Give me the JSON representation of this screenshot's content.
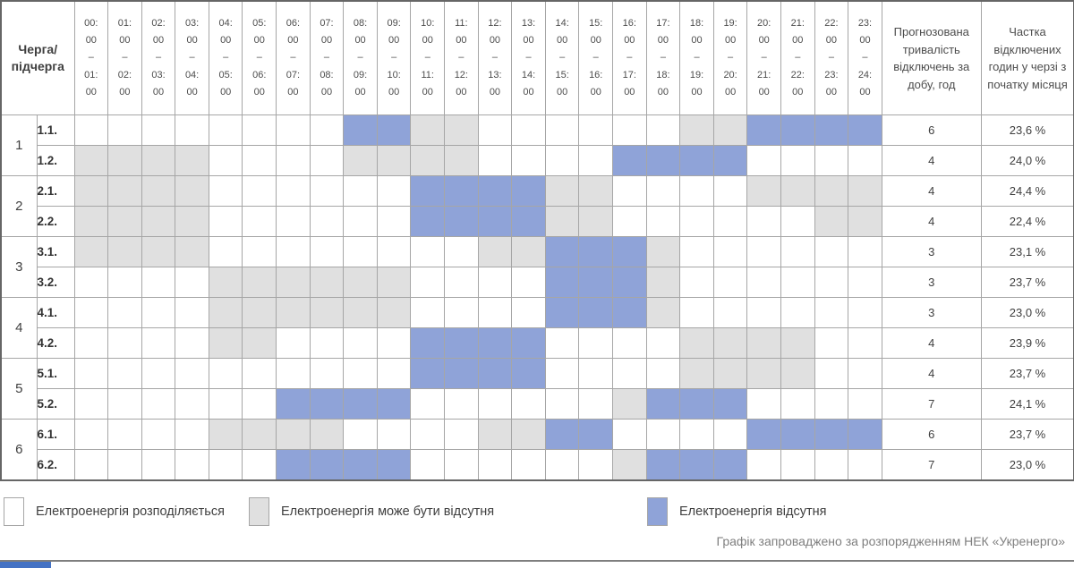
{
  "table": {
    "corner_label": "Черга/\nпідчерга",
    "duration_header": "Прогнозована тривалість відключень за добу, год",
    "share_header": "Частка відключених годин у черзі з початку місяця"
  },
  "legend": {
    "items": [
      {
        "id": "available",
        "label": "Електроенергія розподіляється",
        "color": "#FFFFFF"
      },
      {
        "id": "maybe-absent",
        "label": "Електроенергія може бути відсутня",
        "color": "#E0E0E0"
      },
      {
        "id": "absent",
        "label": "Електроенергія відсутня",
        "color": "#8FA3D8"
      }
    ]
  },
  "footer": {
    "note": "Графік запроваджено за розпорядженням НЕК «Укренерго»"
  },
  "colors": {
    "available": "#FFFFFF",
    "maybe_absent": "#E0E0E0",
    "absent": "#8FA3D8",
    "grid_line": "#A6A6A6",
    "outer_border": "#666666",
    "accent_bar": "#4472C4"
  },
  "chart_data": {
    "type": "heatmap",
    "title": "",
    "x_axis_label": "",
    "y_axis_label": "Черга/підчерга",
    "legend_position": "bottom",
    "cell_states": {
      "W": "Електроенергія розподіляється",
      "G": "Електроенергія може бути відсутня",
      "B": "Електроенергія відсутня"
    },
    "hours": [
      [
        "00:00",
        "01:00"
      ],
      [
        "01:00",
        "02:00"
      ],
      [
        "02:00",
        "03:00"
      ],
      [
        "03:00",
        "04:00"
      ],
      [
        "04:00",
        "05:00"
      ],
      [
        "05:00",
        "06:00"
      ],
      [
        "06:00",
        "07:00"
      ],
      [
        "07:00",
        "08:00"
      ],
      [
        "08:00",
        "09:00"
      ],
      [
        "09:00",
        "10:00"
      ],
      [
        "10:00",
        "11:00"
      ],
      [
        "11:00",
        "12:00"
      ],
      [
        "12:00",
        "13:00"
      ],
      [
        "13:00",
        "14:00"
      ],
      [
        "14:00",
        "15:00"
      ],
      [
        "15:00",
        "16:00"
      ],
      [
        "16:00",
        "17:00"
      ],
      [
        "17:00",
        "18:00"
      ],
      [
        "18:00",
        "19:00"
      ],
      [
        "19:00",
        "20:00"
      ],
      [
        "20:00",
        "21:00"
      ],
      [
        "21:00",
        "22:00"
      ],
      [
        "22:00",
        "23:00"
      ],
      [
        "23:00",
        "24:00"
      ]
    ],
    "rows": [
      {
        "queue": "1",
        "subqueue": "1.1.",
        "cells": "WWWWWWWWBBGGWWWWWWGGBBBB",
        "duration": "6",
        "share": "23,6 %"
      },
      {
        "queue": "1",
        "subqueue": "1.2.",
        "cells": "GGGGWWWWGGGGWWWWBBBBWWWW",
        "duration": "4",
        "share": "24,0 %"
      },
      {
        "queue": "2",
        "subqueue": "2.1.",
        "cells": "GGGGWWWWWWBBBBGGWWWWGGGG",
        "duration": "4",
        "share": "24,4 %"
      },
      {
        "queue": "2",
        "subqueue": "2.2.",
        "cells": "GGGGWWWWWWBBBBGGWWWWWWGG",
        "duration": "4",
        "share": "22,4 %"
      },
      {
        "queue": "3",
        "subqueue": "3.1.",
        "cells": "GGGGWWWWWWWWGGBBBGWWWWWW",
        "duration": "3",
        "share": "23,1 %"
      },
      {
        "queue": "3",
        "subqueue": "3.2.",
        "cells": "WWWWGGGGGGWWWWBBBGWWWWWW",
        "duration": "3",
        "share": "23,7 %"
      },
      {
        "queue": "4",
        "subqueue": "4.1.",
        "cells": "WWWWGGGGGGWWWWBBBGWWWWWW",
        "duration": "3",
        "share": "23,0 %"
      },
      {
        "queue": "4",
        "subqueue": "4.2.",
        "cells": "WWWWGGWWWWBBBBWWWWGGGGWW",
        "duration": "4",
        "share": "23,9 %"
      },
      {
        "queue": "5",
        "subqueue": "5.1.",
        "cells": "WWWWWWWWWWBBBBWWWWGGGGWW",
        "duration": "4",
        "share": "23,7 %"
      },
      {
        "queue": "5",
        "subqueue": "5.2.",
        "cells": "WWWWWWBBBBWWWWWWGBBBWWWW",
        "duration": "7",
        "share": "24,1 %"
      },
      {
        "queue": "6",
        "subqueue": "6.1.",
        "cells": "WWWWGGGGWWWWGGBBWWWWBBBB",
        "duration": "6",
        "share": "23,7 %"
      },
      {
        "queue": "6",
        "subqueue": "6.2.",
        "cells": "WWWWWWBBBBWWWWWWGBBBWWWW",
        "duration": "7",
        "share": "23,0 %"
      }
    ]
  }
}
